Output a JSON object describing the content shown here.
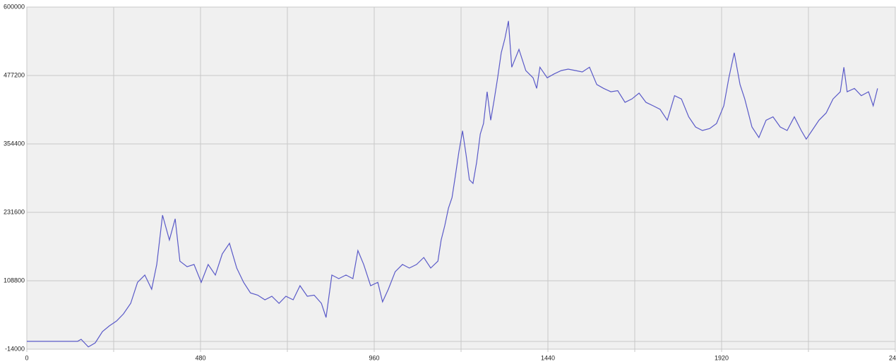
{
  "chart_data": {
    "type": "line",
    "x": [
      0,
      140,
      150,
      170,
      189,
      209,
      228,
      248,
      267,
      287,
      306,
      326,
      345,
      359,
      375,
      394,
      410,
      423,
      443,
      462,
      482,
      501,
      521,
      540,
      560,
      580,
      599,
      618,
      638,
      658,
      677,
      697,
      716,
      736,
      755,
      775,
      794,
      814,
      827,
      843,
      862,
      882,
      901,
      915,
      931,
      950,
      970,
      983,
      999,
      1018,
      1038,
      1057,
      1077,
      1097,
      1116,
      1136,
      1145,
      1155,
      1165,
      1175,
      1184,
      1194,
      1204,
      1214,
      1223,
      1233,
      1243,
      1253,
      1262,
      1272,
      1282,
      1292,
      1301,
      1311,
      1321,
      1331,
      1340,
      1360,
      1379,
      1399,
      1409,
      1418,
      1438,
      1457,
      1477,
      1496,
      1516,
      1535,
      1555,
      1575,
      1594,
      1614,
      1633,
      1653,
      1672,
      1692,
      1711,
      1731,
      1750,
      1770,
      1790,
      1809,
      1829,
      1848,
      1867,
      1887,
      1906,
      1926,
      1940,
      1955,
      1971,
      1984,
      2004,
      2023,
      2043,
      2062,
      2082,
      2101,
      2121,
      2140,
      2154,
      2170,
      2189,
      2209,
      2228,
      2248,
      2258,
      2267,
      2287,
      2306,
      2326,
      2339,
      2351
    ],
    "values": [
      0,
      0,
      3700,
      -10000,
      -2600,
      17600,
      27800,
      36600,
      49300,
      68300,
      106000,
      119000,
      93600,
      138000,
      226500,
      182000,
      220000,
      144000,
      134000,
      138000,
      106000,
      138000,
      119000,
      157000,
      176000,
      131600,
      106000,
      87000,
      83000,
      74600,
      81000,
      68300,
      81000,
      74600,
      100000,
      81000,
      83000,
      68300,
      43000,
      119000,
      112600,
      119000,
      112600,
      163000,
      138000,
      100000,
      106000,
      71000,
      93600,
      125000,
      138000,
      131600,
      138000,
      150600,
      131600,
      144000,
      182000,
      207500,
      239000,
      258000,
      296000,
      340000,
      378000,
      334000,
      290000,
      283500,
      321000,
      372000,
      391000,
      448000,
      397000,
      435000,
      473000,
      518000,
      543000,
      575000,
      492000,
      524000,
      486000,
      473000,
      454000,
      492000,
      473000,
      480000,
      486000,
      488600,
      486000,
      483500,
      492000,
      461000,
      454000,
      448000,
      450000,
      429000,
      435000,
      445600,
      429000,
      422800,
      416400,
      397000,
      441000,
      435000,
      403000,
      384800,
      378500,
      382000,
      391000,
      422800,
      473000,
      518000,
      461000,
      435000,
      384800,
      365800,
      397000,
      403000,
      384800,
      378500,
      403000,
      378500,
      363000,
      378500,
      397000,
      410000,
      435000,
      448000,
      492000,
      448000,
      454000,
      441000,
      448000,
      422800,
      454000
    ],
    "color": "#5a5ac8",
    "xlim": [
      0,
      2400
    ],
    "xticks": [
      0,
      480,
      960,
      1440,
      1920,
      {
        "value": 2400,
        "label": "24"
      }
    ],
    "x_minor_ticks": [
      240,
      720,
      1200,
      1680,
      2160
    ],
    "ylim": [
      -14000,
      600000
    ],
    "yticks": [
      -14000,
      108800,
      231600,
      354400,
      477200,
      600000
    ],
    "y_minor_ticks": [
      0
    ],
    "grid": true
  }
}
